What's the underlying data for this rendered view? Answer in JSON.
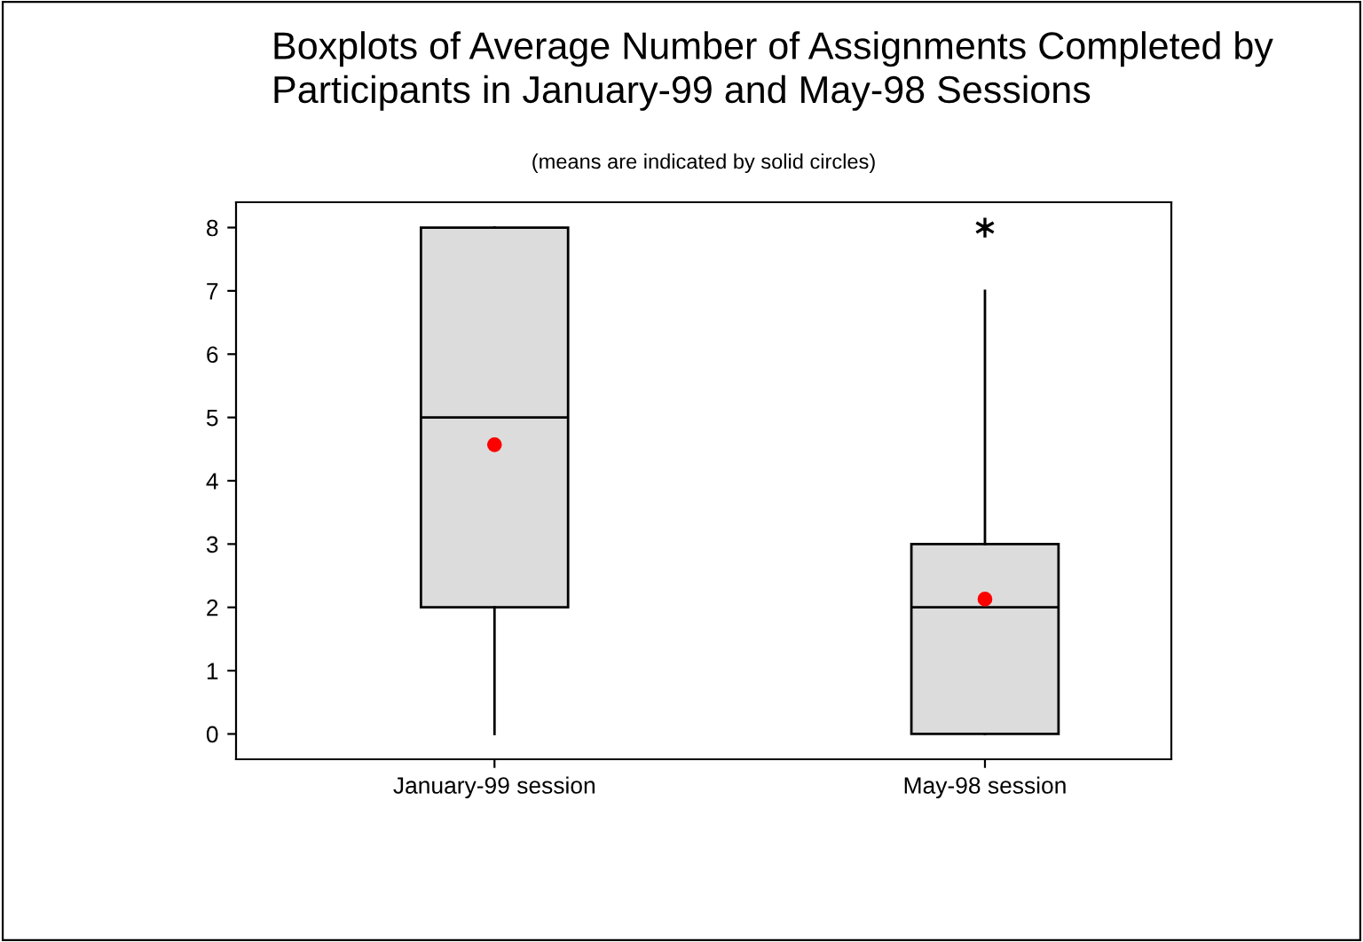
{
  "chart_data": {
    "type": "box",
    "title": "Boxplots of Average Number of Assignments Completed by\nParticipants in January-99 and May-98 Sessions",
    "subtitle": "(means are indicated by solid circles)",
    "categories": [
      "January-99 session",
      "May-98 session"
    ],
    "series": [
      {
        "color": "#dcdcdc",
        "boxes": [
          {
            "low": 0,
            "q1": 2,
            "median": 5,
            "q3": 8,
            "high": 8,
            "mean": 4.57
          },
          {
            "low": 0,
            "q1": 0,
            "median": 2,
            "q3": 3,
            "high": 7,
            "mean": 2.13,
            "outliers": [
              8
            ]
          }
        ]
      }
    ],
    "ylim": [
      -0.4,
      8.4
    ],
    "yticks": [
      0,
      1,
      2,
      3,
      4,
      5,
      6,
      7,
      8
    ],
    "grid": false
  }
}
